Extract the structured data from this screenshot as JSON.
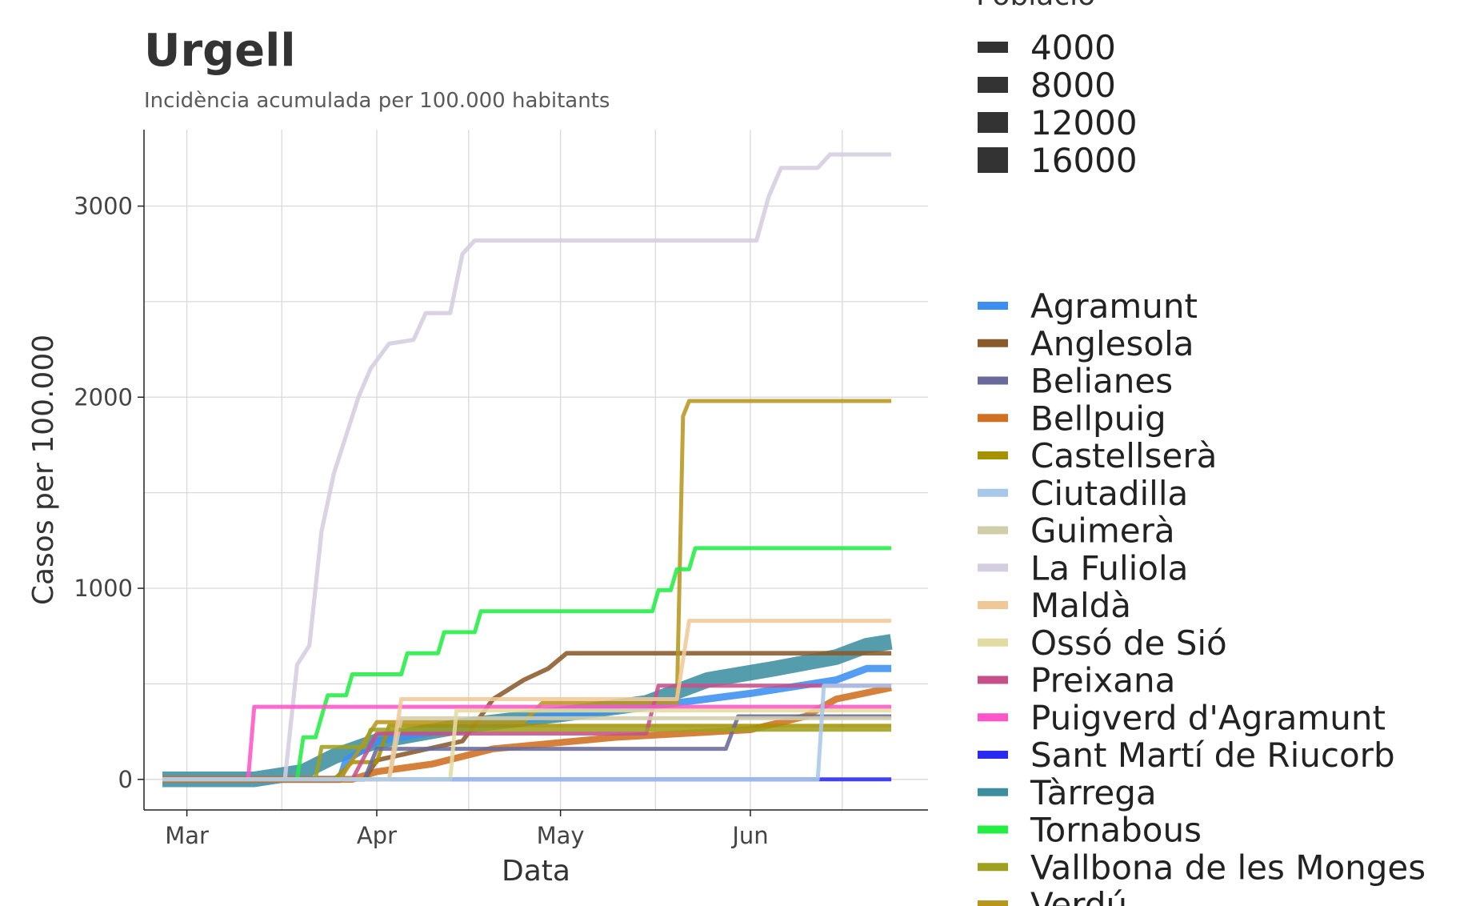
{
  "chart_data": {
    "type": "line",
    "title": "Urgell",
    "subtitle": "Incidència acumulada per 100.000 habitants",
    "xlabel": "Data",
    "ylabel": "Casos per 100.000",
    "x_type": "date",
    "xlim": [
      "2020-02-23",
      "2020-06-30"
    ],
    "ylim": [
      -160,
      3400
    ],
    "x_ticks": [
      {
        "date": "2020-03-01",
        "label": "Mar"
      },
      {
        "date": "2020-04-01",
        "label": "Apr"
      },
      {
        "date": "2020-05-01",
        "label": "May"
      },
      {
        "date": "2020-06-01",
        "label": "Jun"
      }
    ],
    "y_ticks": [
      0,
      1000,
      2000,
      3000
    ],
    "grid": true,
    "size_legend": {
      "title": "Població",
      "entries": [
        {
          "label": "4000",
          "value": 4000
        },
        {
          "label": "8000",
          "value": 8000
        },
        {
          "label": "12000",
          "value": 12000
        },
        {
          "label": "16000",
          "value": 16000
        }
      ]
    },
    "legend_position": "right",
    "series": [
      {
        "name": "Agramunt",
        "color": "#3b8ff0",
        "population": 5500,
        "points": [
          [
            "2020-02-26",
            0
          ],
          [
            "2020-03-26",
            0
          ],
          [
            "2020-03-27",
            100
          ],
          [
            "2020-04-01",
            200
          ],
          [
            "2020-04-20",
            300
          ],
          [
            "2020-05-15",
            380
          ],
          [
            "2020-06-01",
            450
          ],
          [
            "2020-06-15",
            520
          ],
          [
            "2020-06-20",
            580
          ],
          [
            "2020-06-24",
            580
          ]
        ]
      },
      {
        "name": "Anglesola",
        "color": "#8b5a2b",
        "population": 1900,
        "points": [
          [
            "2020-02-26",
            0
          ],
          [
            "2020-03-30",
            0
          ],
          [
            "2020-04-01",
            100
          ],
          [
            "2020-04-15",
            200
          ],
          [
            "2020-04-20",
            420
          ],
          [
            "2020-04-25",
            520
          ],
          [
            "2020-04-29",
            580
          ],
          [
            "2020-05-02",
            660
          ],
          [
            "2020-06-20",
            660
          ],
          [
            "2020-06-24",
            660
          ]
        ]
      },
      {
        "name": "Belianes",
        "color": "#6a6a9a",
        "population": 600,
        "points": [
          [
            "2020-02-26",
            0
          ],
          [
            "2020-03-30",
            0
          ],
          [
            "2020-04-01",
            160
          ],
          [
            "2020-05-28",
            160
          ],
          [
            "2020-05-30",
            330
          ],
          [
            "2020-06-24",
            330
          ]
        ]
      },
      {
        "name": "Bellpuig",
        "color": "#d07020",
        "population": 5000,
        "points": [
          [
            "2020-02-26",
            0
          ],
          [
            "2020-03-28",
            0
          ],
          [
            "2020-04-01",
            40
          ],
          [
            "2020-04-10",
            80
          ],
          [
            "2020-04-20",
            160
          ],
          [
            "2020-05-10",
            220
          ],
          [
            "2020-06-01",
            260
          ],
          [
            "2020-06-10",
            330
          ],
          [
            "2020-06-15",
            420
          ],
          [
            "2020-06-24",
            480
          ]
        ]
      },
      {
        "name": "Castellserà",
        "color": "#a69200",
        "population": 1100,
        "points": [
          [
            "2020-02-26",
            0
          ],
          [
            "2020-03-25",
            0
          ],
          [
            "2020-03-28",
            90
          ],
          [
            "2020-04-01",
            90
          ],
          [
            "2020-04-03",
            280
          ],
          [
            "2020-06-24",
            280
          ]
        ]
      },
      {
        "name": "Ciutadilla",
        "color": "#a8c8ea",
        "population": 200,
        "points": [
          [
            "2020-02-26",
            0
          ],
          [
            "2020-06-12",
            0
          ],
          [
            "2020-06-13",
            490
          ],
          [
            "2020-06-24",
            490
          ]
        ]
      },
      {
        "name": "Guimerà",
        "color": "#d0ceaa",
        "population": 300,
        "points": [
          [
            "2020-02-26",
            0
          ],
          [
            "2020-04-03",
            0
          ],
          [
            "2020-04-05",
            320
          ],
          [
            "2020-06-24",
            320
          ]
        ]
      },
      {
        "name": "La Fuliola",
        "color": "#d5cde0",
        "population": 1300,
        "points": [
          [
            "2020-02-26",
            0
          ],
          [
            "2020-03-17",
            0
          ],
          [
            "2020-03-19",
            600
          ],
          [
            "2020-03-21",
            700
          ],
          [
            "2020-03-23",
            1300
          ],
          [
            "2020-03-25",
            1600
          ],
          [
            "2020-03-27",
            1800
          ],
          [
            "2020-03-29",
            2000
          ],
          [
            "2020-03-31",
            2150
          ],
          [
            "2020-04-03",
            2280
          ],
          [
            "2020-04-07",
            2300
          ],
          [
            "2020-04-09",
            2440
          ],
          [
            "2020-04-13",
            2440
          ],
          [
            "2020-04-15",
            2750
          ],
          [
            "2020-04-17",
            2820
          ],
          [
            "2020-06-02",
            2820
          ],
          [
            "2020-06-04",
            3050
          ],
          [
            "2020-06-06",
            3200
          ],
          [
            "2020-06-12",
            3200
          ],
          [
            "2020-06-14",
            3270
          ],
          [
            "2020-06-24",
            3270
          ]
        ]
      },
      {
        "name": "Maldà",
        "color": "#f0c898",
        "population": 230,
        "points": [
          [
            "2020-02-26",
            0
          ],
          [
            "2020-04-03",
            0
          ],
          [
            "2020-04-05",
            420
          ],
          [
            "2020-05-20",
            420
          ],
          [
            "2020-05-22",
            830
          ],
          [
            "2020-06-24",
            830
          ]
        ]
      },
      {
        "name": "Ossó de Sió",
        "color": "#e2dca2",
        "population": 220,
        "points": [
          [
            "2020-02-26",
            0
          ],
          [
            "2020-04-13",
            0
          ],
          [
            "2020-04-14",
            360
          ],
          [
            "2020-06-24",
            360
          ]
        ]
      },
      {
        "name": "Preixana",
        "color": "#c8508a",
        "population": 400,
        "points": [
          [
            "2020-02-26",
            0
          ],
          [
            "2020-03-28",
            0
          ],
          [
            "2020-04-01",
            240
          ],
          [
            "2020-05-15",
            240
          ],
          [
            "2020-05-17",
            490
          ],
          [
            "2020-06-24",
            490
          ]
        ]
      },
      {
        "name": "Puigverd d'Agramunt",
        "color": "#ff55c8",
        "population": 270,
        "points": [
          [
            "2020-02-26",
            0
          ],
          [
            "2020-03-11",
            0
          ],
          [
            "2020-03-12",
            380
          ],
          [
            "2020-06-24",
            380
          ]
        ]
      },
      {
        "name": "Sant Martí de Riucorb",
        "color": "#2a2af0",
        "population": 700,
        "points": [
          [
            "2020-02-26",
            0
          ],
          [
            "2020-06-24",
            0
          ]
        ]
      },
      {
        "name": "Tàrrega",
        "color": "#3d8fa0",
        "population": 17000,
        "points": [
          [
            "2020-02-26",
            0
          ],
          [
            "2020-03-12",
            0
          ],
          [
            "2020-03-20",
            40
          ],
          [
            "2020-03-25",
            120
          ],
          [
            "2020-04-01",
            200
          ],
          [
            "2020-04-15",
            280
          ],
          [
            "2020-05-01",
            340
          ],
          [
            "2020-05-15",
            400
          ],
          [
            "2020-05-25",
            520
          ],
          [
            "2020-06-05",
            580
          ],
          [
            "2020-06-15",
            640
          ],
          [
            "2020-06-20",
            700
          ],
          [
            "2020-06-24",
            720
          ]
        ]
      },
      {
        "name": "Tornabous",
        "color": "#22ee44",
        "population": 850,
        "points": [
          [
            "2020-02-26",
            0
          ],
          [
            "2020-03-19",
            0
          ],
          [
            "2020-03-20",
            220
          ],
          [
            "2020-03-22",
            220
          ],
          [
            "2020-03-23",
            330
          ],
          [
            "2020-03-24",
            440
          ],
          [
            "2020-03-27",
            440
          ],
          [
            "2020-03-28",
            550
          ],
          [
            "2020-04-05",
            550
          ],
          [
            "2020-04-06",
            660
          ],
          [
            "2020-04-11",
            660
          ],
          [
            "2020-04-12",
            770
          ],
          [
            "2020-04-17",
            770
          ],
          [
            "2020-04-18",
            880
          ],
          [
            "2020-05-16",
            880
          ],
          [
            "2020-05-17",
            990
          ],
          [
            "2020-05-19",
            990
          ],
          [
            "2020-05-20",
            1100
          ],
          [
            "2020-05-22",
            1100
          ],
          [
            "2020-05-23",
            1210
          ],
          [
            "2020-06-24",
            1210
          ]
        ]
      },
      {
        "name": "Vallbona de les Monges",
        "color": "#9ea020",
        "population": 250,
        "points": [
          [
            "2020-02-26",
            0
          ],
          [
            "2020-03-22",
            0
          ],
          [
            "2020-03-23",
            170
          ],
          [
            "2020-03-30",
            170
          ],
          [
            "2020-03-31",
            260
          ],
          [
            "2020-06-24",
            260
          ]
        ]
      },
      {
        "name": "Verdú",
        "color": "#b8961e",
        "population": 1000,
        "points": [
          [
            "2020-02-26",
            0
          ],
          [
            "2020-03-26",
            0
          ],
          [
            "2020-04-01",
            300
          ],
          [
            "2020-04-25",
            300
          ],
          [
            "2020-04-28",
            400
          ],
          [
            "2020-05-20",
            400
          ],
          [
            "2020-05-21",
            1900
          ],
          [
            "2020-05-22",
            1980
          ],
          [
            "2020-06-24",
            1980
          ]
        ]
      }
    ]
  }
}
